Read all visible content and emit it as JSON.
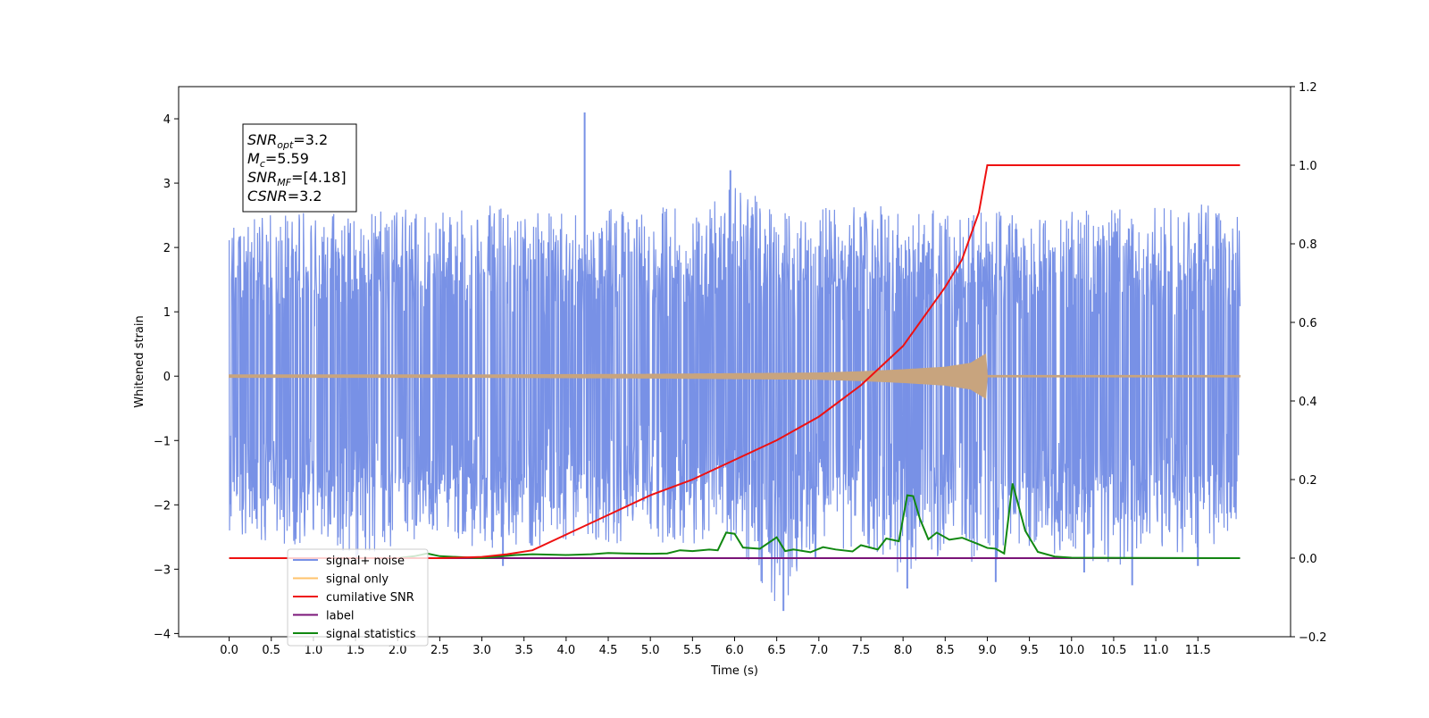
{
  "chart_data": {
    "type": "line",
    "title": "",
    "xlabel": "Time (s)",
    "ylabel": "Whitened strain",
    "y2label": "",
    "xlim": [
      -0.6,
      12.6
    ],
    "ylim": [
      -4.05,
      4.5
    ],
    "y2lim": [
      -0.2,
      1.2
    ],
    "x_ticks": [
      "0.0",
      "0.5",
      "1.0",
      "1.5",
      "2.0",
      "2.5",
      "3.0",
      "3.5",
      "4.0",
      "4.5",
      "5.0",
      "5.5",
      "6.0",
      "6.5",
      "7.0",
      "7.5",
      "8.0",
      "8.5",
      "9.0",
      "9.5",
      "10.0",
      "10.5",
      "11.0",
      "11.5"
    ],
    "y_ticks": [
      "−4",
      "−3",
      "−2",
      "−1",
      "0",
      "1",
      "2",
      "3",
      "4"
    ],
    "y2_ticks": [
      "−0.2",
      "0.0",
      "0.2",
      "0.4",
      "0.6",
      "0.8",
      "1.0",
      "1.2"
    ],
    "grid": false,
    "legend_position": "lower-left",
    "annotation": {
      "lines": [
        {
          "sym": "SNR",
          "sub": "opt",
          "value": "=3.2"
        },
        {
          "sym": "M",
          "sub": "c",
          "value": "=5.59"
        },
        {
          "sym": "SNR",
          "sub": "MF",
          "value": "=[4.18]"
        },
        {
          "sym": "CSNR",
          "sub": "",
          "value": "=3.2"
        }
      ]
    },
    "series": [
      {
        "name": "signal+ noise",
        "color": "#7891e6",
        "axis": "left",
        "x_range": [
          0.0,
          12.0
        ],
        "band_outline": {
          "x": [
            0.0,
            0.5,
            1.0,
            1.5,
            2.0,
            2.5,
            3.0,
            3.5,
            4.0,
            4.5,
            5.0,
            5.5,
            6.0,
            6.5,
            7.0,
            7.5,
            8.0,
            8.5,
            9.0,
            9.5,
            10.0,
            10.5,
            11.0,
            11.5,
            12.0
          ],
          "upper": [
            2.5,
            2.6,
            2.6,
            2.5,
            2.6,
            2.6,
            2.7,
            2.5,
            2.6,
            2.6,
            2.6,
            2.7,
            3.0,
            2.6,
            2.6,
            2.7,
            2.6,
            2.6,
            2.6,
            2.5,
            2.6,
            2.6,
            2.7,
            2.7,
            2.5
          ],
          "lower": [
            -2.4,
            -2.6,
            -2.7,
            -2.9,
            -2.6,
            -2.7,
            -2.7,
            -2.7,
            -2.6,
            -2.6,
            -2.6,
            -2.6,
            -2.6,
            -3.6,
            -2.9,
            -2.6,
            -3.2,
            -2.8,
            -3.1,
            -2.7,
            -2.8,
            -3.0,
            -2.7,
            -2.8,
            -2.4
          ]
        },
        "spikes": [
          [
            4.22,
            4.1
          ],
          [
            5.95,
            3.2
          ],
          [
            6.58,
            -3.65
          ],
          [
            8.05,
            -3.3
          ],
          [
            9.1,
            -3.2
          ],
          [
            10.72,
            -3.25
          ],
          [
            10.15,
            -3.05
          ],
          [
            11.5,
            -2.95
          ],
          [
            3.25,
            -2.95
          ]
        ]
      },
      {
        "name": "signal only",
        "color": "#c8a47e",
        "axis": "left",
        "x": [
          0.0,
          1.0,
          2.0,
          3.0,
          4.0,
          5.0,
          6.0,
          7.0,
          7.5,
          8.0,
          8.5,
          8.8,
          8.99,
          9.0,
          12.0
        ],
        "envelope": [
          0.02,
          0.02,
          0.02,
          0.02,
          0.025,
          0.03,
          0.04,
          0.05,
          0.07,
          0.1,
          0.14,
          0.2,
          0.35,
          0.0,
          0.0
        ]
      },
      {
        "name": "cumilative SNR",
        "color": "#ee1111",
        "axis": "right",
        "x": [
          0.0,
          1.0,
          2.0,
          2.5,
          3.0,
          3.3,
          3.6,
          4.0,
          4.5,
          5.0,
          5.5,
          6.0,
          6.5,
          7.0,
          7.5,
          8.0,
          8.5,
          8.7,
          8.9,
          9.0,
          9.1,
          10.0,
          11.0,
          12.0
        ],
        "values": [
          0.0,
          0.0,
          0.0,
          0.0,
          0.003,
          0.01,
          0.02,
          0.06,
          0.11,
          0.16,
          0.2,
          0.25,
          0.3,
          0.36,
          0.44,
          0.54,
          0.69,
          0.76,
          0.88,
          1.0,
          1.0,
          1.0,
          1.0,
          1.0
        ]
      },
      {
        "name": "label",
        "color": "#7a1478",
        "axis": "right",
        "x": [
          0.0,
          12.0
        ],
        "values": [
          0.0,
          0.0
        ]
      },
      {
        "name": "signal statistics",
        "color": "#118811",
        "axis": "right",
        "x": [
          0.0,
          1.0,
          2.0,
          2.2,
          2.35,
          2.5,
          3.0,
          3.4,
          3.6,
          4.0,
          4.3,
          4.5,
          4.7,
          5.0,
          5.2,
          5.35,
          5.5,
          5.7,
          5.8,
          5.9,
          6.0,
          6.1,
          6.3,
          6.5,
          6.6,
          6.7,
          6.9,
          7.05,
          7.2,
          7.4,
          7.5,
          7.7,
          7.8,
          7.95,
          8.05,
          8.12,
          8.2,
          8.3,
          8.4,
          8.55,
          8.7,
          8.9,
          9.0,
          9.1,
          9.2,
          9.3,
          9.45,
          9.6,
          9.8,
          10.0,
          12.0
        ],
        "values": [
          0.0,
          0.0,
          0.0,
          0.005,
          0.012,
          0.005,
          0.0,
          0.008,
          0.01,
          0.008,
          0.01,
          0.013,
          0.012,
          0.011,
          0.012,
          0.02,
          0.018,
          0.022,
          0.02,
          0.065,
          0.062,
          0.027,
          0.024,
          0.053,
          0.018,
          0.022,
          0.015,
          0.028,
          0.022,
          0.017,
          0.033,
          0.022,
          0.05,
          0.043,
          0.16,
          0.158,
          0.1,
          0.048,
          0.065,
          0.047,
          0.052,
          0.035,
          0.026,
          0.024,
          0.012,
          0.19,
          0.07,
          0.016,
          0.004,
          0.001,
          0.0
        ]
      }
    ]
  }
}
